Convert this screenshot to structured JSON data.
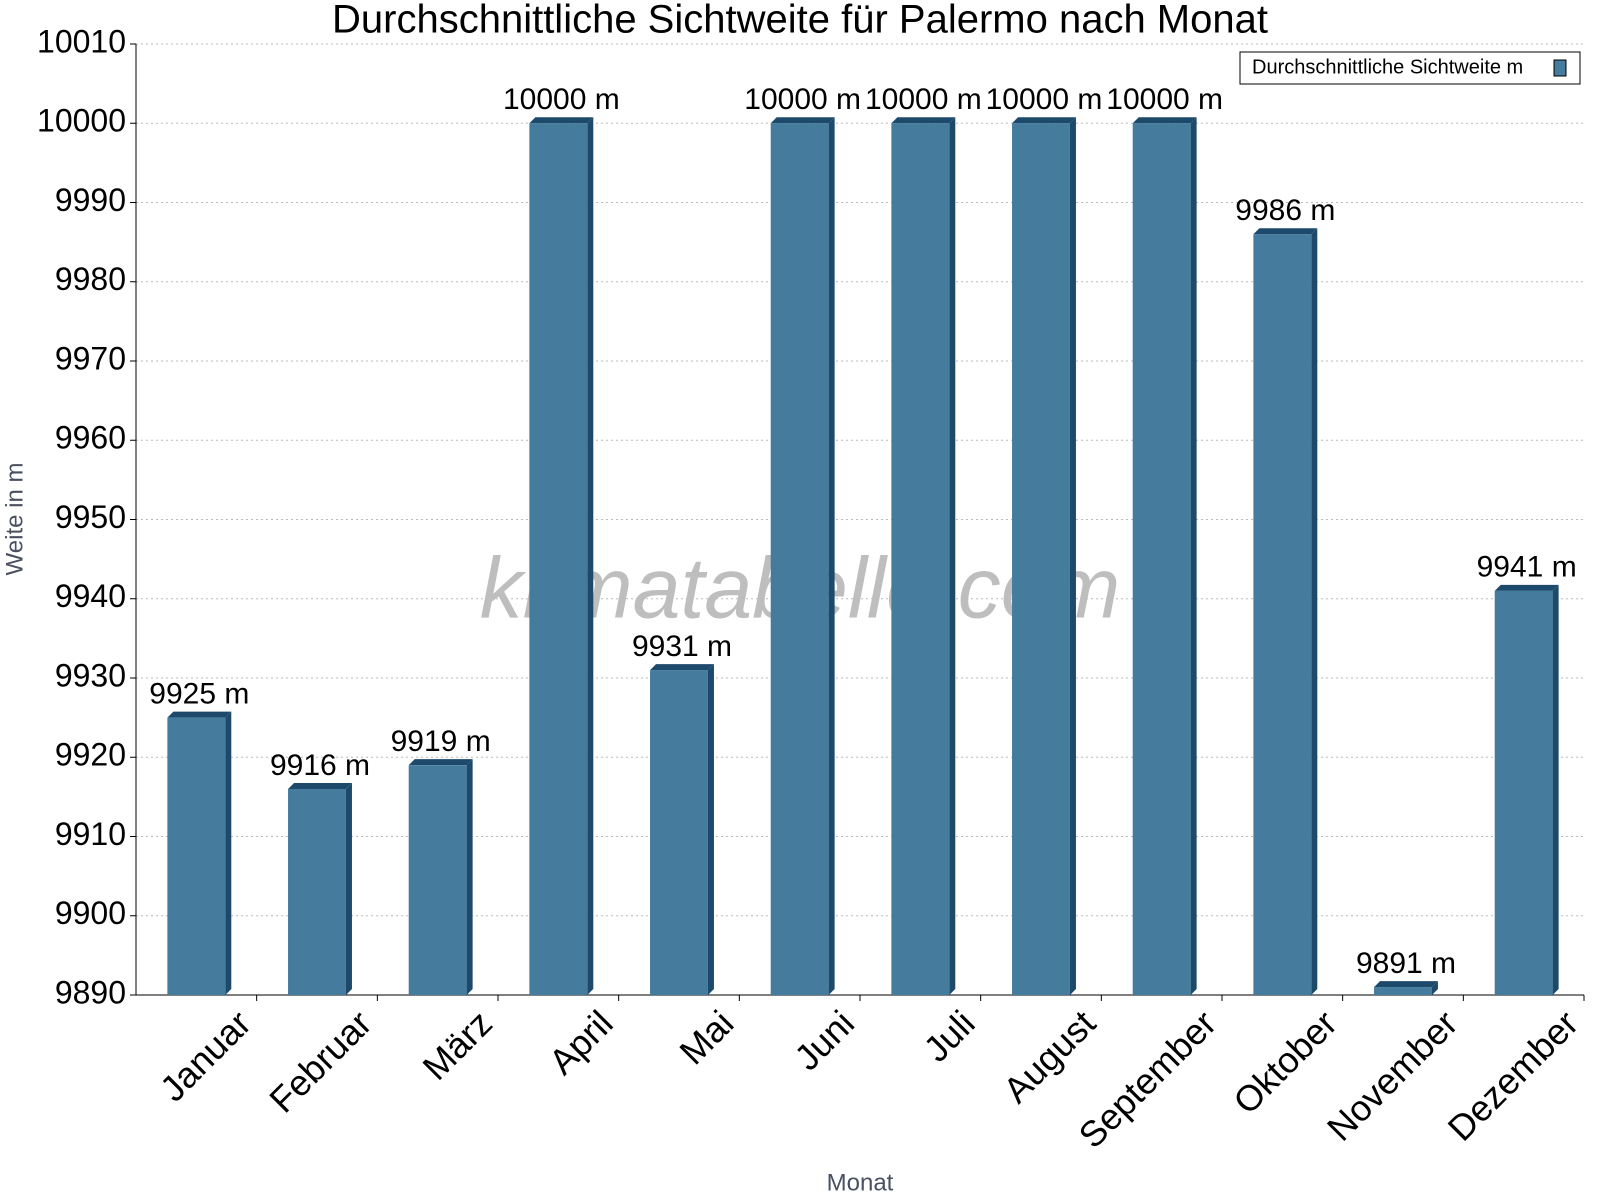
{
  "chart_data": {
    "type": "bar",
    "title": "Durchschnittliche Sichtweite für Palermo nach Monat",
    "x_label": "Monat",
    "y_label": "Weite in m",
    "watermark": "klimatabelle.com",
    "categories": [
      "Januar",
      "Februar",
      "März",
      "April",
      "Mai",
      "Juni",
      "Juli",
      "August",
      "September",
      "Oktober",
      "November",
      "Dezember"
    ],
    "series": [
      {
        "name": "Durchschnittliche Sichtweite m",
        "color": "#457b9d",
        "values": [
          9925,
          9916,
          9919,
          10000,
          9931,
          10000,
          10000,
          10000,
          10000,
          9986,
          9891,
          9941
        ],
        "value_labels": [
          "9925 m",
          "9916 m",
          "9919 m",
          "10000 m",
          "9931 m",
          "10000 m",
          "10000 m",
          "10000 m",
          "10000 m",
          "9986 m",
          "9891 m",
          "9941 m"
        ]
      }
    ],
    "ylim": [
      9890,
      10010
    ],
    "yticks": [
      9890,
      9900,
      9910,
      9920,
      9930,
      9940,
      9950,
      9960,
      9970,
      9980,
      9990,
      10000,
      10010
    ],
    "grid": true,
    "legend": "top-right"
  }
}
